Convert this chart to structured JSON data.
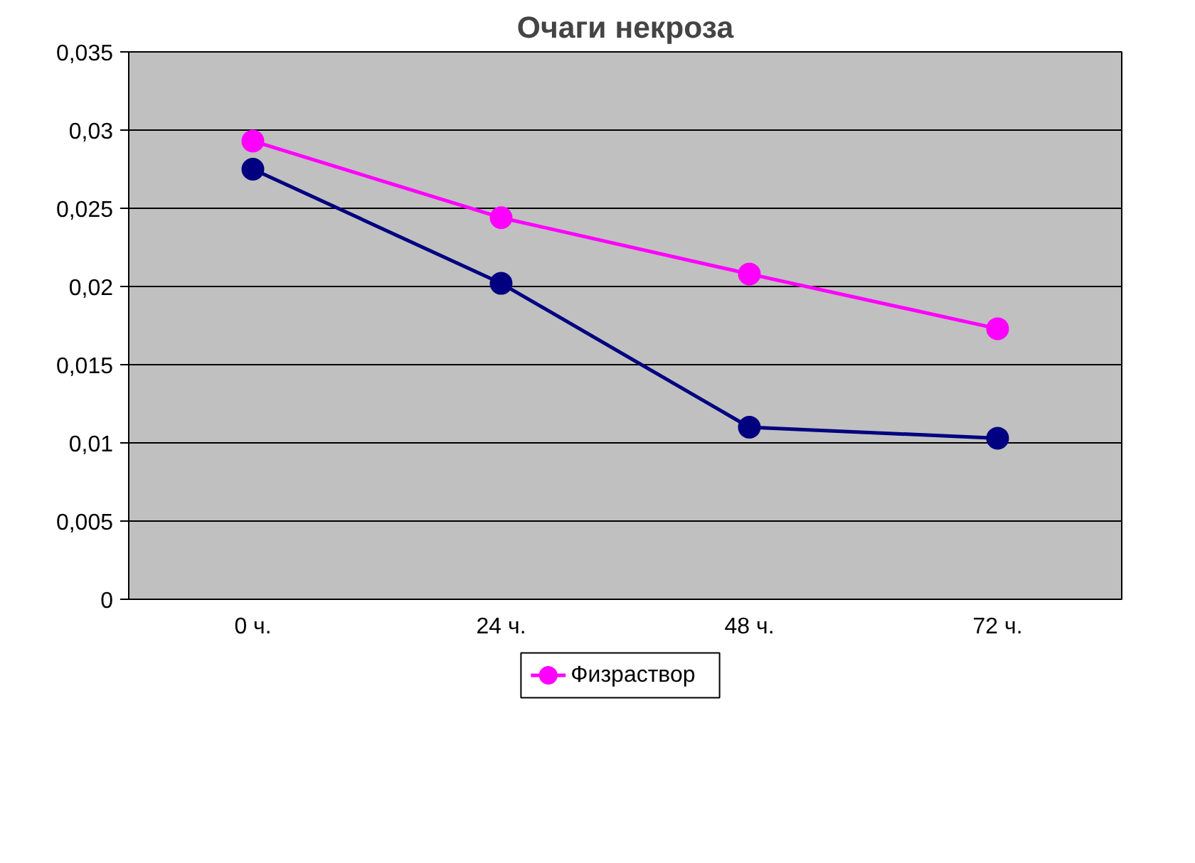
{
  "chart_data": {
    "type": "line",
    "title": "Очаги некроза",
    "categories": [
      "0 ч.",
      "24 ч.",
      "48 ч.",
      "72 ч."
    ],
    "series": [
      {
        "color": "#000080",
        "values": [
          0.0275,
          0.0202,
          0.011,
          0.0103
        ]
      },
      {
        "name": "Физраствор",
        "color": "#ff00ff",
        "values": [
          0.0293,
          0.0244,
          0.0208,
          0.0173
        ]
      }
    ],
    "ylim": [
      0,
      0.035
    ],
    "yticks": [
      0,
      {
        "value": 0.005,
        "label": "0,005"
      },
      {
        "value": 0.01,
        "label": "0,01"
      },
      {
        "value": 0.015,
        "label": "0,015"
      },
      {
        "value": 0.02,
        "label": "0,02"
      },
      {
        "value": 0.025,
        "label": "0,025"
      },
      {
        "value": 0.03,
        "label": "0,03"
      },
      {
        "value": 0.035,
        "label": "0,035"
      }
    ],
    "grid": "y",
    "legend": "bottom",
    "marker": "circle",
    "line_style": "solid"
  }
}
